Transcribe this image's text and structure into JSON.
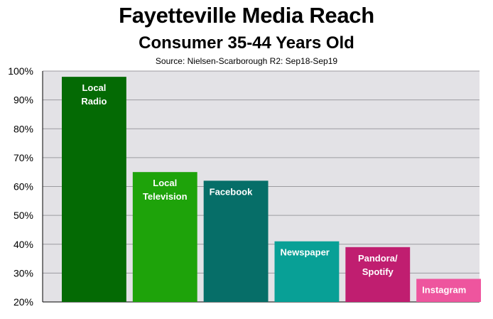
{
  "chart_data": {
    "type": "bar",
    "title": "Fayetteville Media Reach",
    "subtitle": "Consumer 35-44 Years Old",
    "source": "Source: Nielsen-Scarborough R2: Sep18-Sep19",
    "categories": [
      {
        "label": [
          "Local",
          "Radio"
        ],
        "color": "#046A04"
      },
      {
        "label": [
          "Local",
          "Television"
        ],
        "color": "#1EA30A"
      },
      {
        "label": [
          "Facebook"
        ],
        "color": "#066E68"
      },
      {
        "label": [
          "Newspaper"
        ],
        "color": "#08A096"
      },
      {
        "label": [
          "Pandora/",
          "Spotify"
        ],
        "color": "#C01E70"
      },
      {
        "label": [
          "Instagram"
        ],
        "color": "#EE559E"
      }
    ],
    "values": [
      98,
      65,
      62,
      41,
      39,
      28
    ],
    "ylim": [
      20,
      100
    ],
    "yticks": [
      "20%",
      "30%",
      "40%",
      "50%",
      "60%",
      "70%",
      "80%",
      "90%",
      "100%"
    ],
    "grid": true,
    "plot_background": "#E3E2E6"
  }
}
